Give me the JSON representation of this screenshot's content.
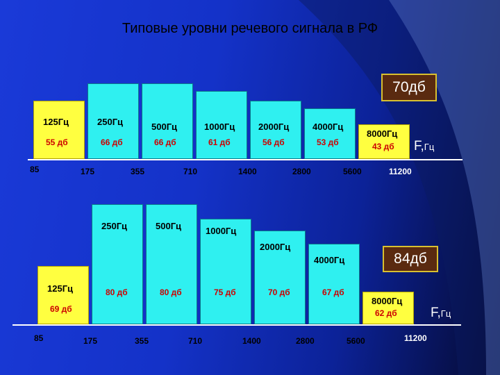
{
  "title": "Типовые уровни речевого сигнала в РФ",
  "colors": {
    "cyan_bar": "#2ff0f0",
    "yellow_bar": "#ffff40",
    "axis": "#ffffff",
    "level_box": "#5a2a10",
    "db_red": "#cc0000"
  },
  "panel1": {
    "level": "70дб",
    "axis_label": "F,",
    "axis_unit": "Гц",
    "bands": [
      {
        "freq": "125Гц",
        "db": "55 дб"
      },
      {
        "freq": "250Гц",
        "db": "66 дб"
      },
      {
        "freq": "500Гц",
        "db": "66 дб"
      },
      {
        "freq": "1000Гц",
        "db": "61 дб"
      },
      {
        "freq": "2000Гц",
        "db": "56 дб"
      },
      {
        "freq": "4000Гц",
        "db": "53 дб"
      },
      {
        "freq": "8000Гц",
        "db": "43 дб"
      }
    ],
    "ticks": [
      "85",
      "175",
      "355",
      "710",
      "1400",
      "2800",
      "5600",
      "11200"
    ]
  },
  "panel2": {
    "level": "84дб",
    "axis_label": "F,",
    "axis_unit": "Гц",
    "bands": [
      {
        "freq": "125Гц",
        "db": "69 дб"
      },
      {
        "freq": "250Гц",
        "db": "80 дб"
      },
      {
        "freq": "500Гц",
        "db": "80 дб"
      },
      {
        "freq": "1000Гц",
        "db": "75 дб"
      },
      {
        "freq": "2000Гц",
        "db": "70 дб"
      },
      {
        "freq": "4000Гц",
        "db": "67 дб"
      },
      {
        "freq": "8000Гц",
        "db": "62 дб"
      }
    ],
    "ticks": [
      "85",
      "175",
      "355",
      "710",
      "1400",
      "2800",
      "5600",
      "11200"
    ]
  }
}
